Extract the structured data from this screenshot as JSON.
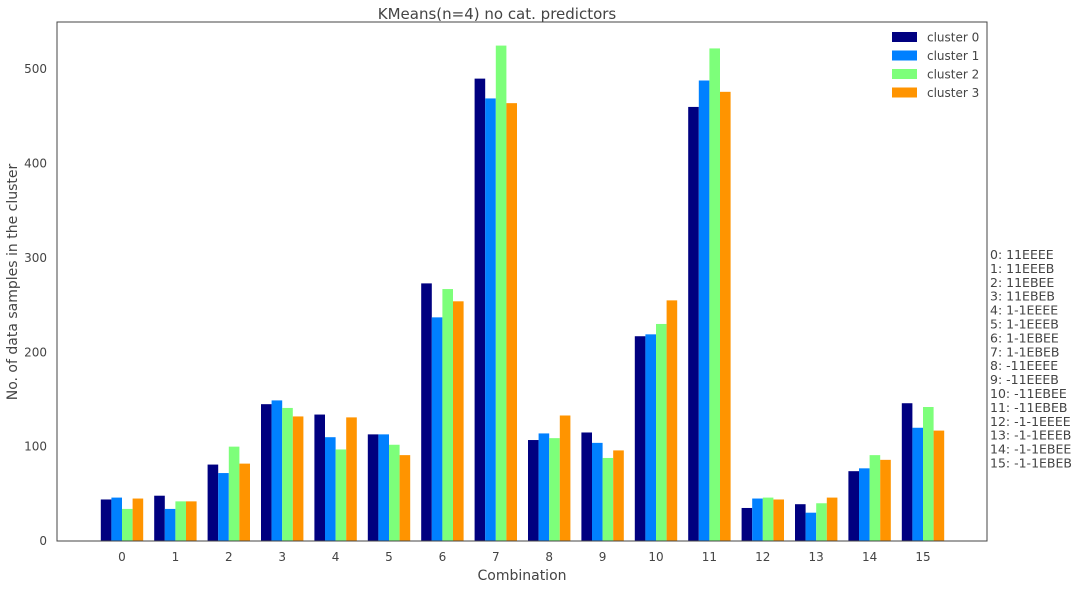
{
  "chart_data": {
    "type": "bar",
    "title": "KMeans(n=4) no cat. predictors",
    "xlabel": "Combination",
    "ylabel": "No. of data samples in the cluster",
    "ylim": [
      0,
      550
    ],
    "yticks": [
      0,
      100,
      200,
      300,
      400,
      500
    ],
    "categories": [
      "0",
      "1",
      "2",
      "3",
      "4",
      "5",
      "6",
      "7",
      "8",
      "9",
      "10",
      "11",
      "12",
      "13",
      "14",
      "15"
    ],
    "series": [
      {
        "name": "cluster 0",
        "color": "#000080",
        "values": [
          44,
          48,
          81,
          145,
          134,
          113,
          273,
          490,
          107,
          115,
          217,
          460,
          35,
          39,
          74,
          146
        ]
      },
      {
        "name": "cluster 1",
        "color": "#0080ff",
        "values": [
          46,
          34,
          72,
          149,
          110,
          113,
          237,
          469,
          114,
          104,
          219,
          488,
          45,
          30,
          77,
          120
        ]
      },
      {
        "name": "cluster 2",
        "color": "#7dff7a",
        "values": [
          34,
          42,
          100,
          141,
          97,
          102,
          267,
          525,
          109,
          88,
          230,
          522,
          46,
          40,
          91,
          142
        ]
      },
      {
        "name": "cluster 3",
        "color": "#ff9400",
        "values": [
          45,
          42,
          82,
          132,
          131,
          91,
          254,
          464,
          133,
          96,
          255,
          476,
          44,
          46,
          86,
          117
        ]
      }
    ],
    "grid": false,
    "legend_position": "top-right",
    "side_legend": [
      "0: 11EEEE",
      "1: 11EEEB",
      "2: 11EBEE",
      "3: 11EBEB",
      "4: 1-1EEEE",
      "5: 1-1EEEB",
      "6: 1-1EBEE",
      "7: 1-1EBEB",
      "8: -11EEEE",
      "9: -11EEEB",
      "10: -11EBEE",
      "11: -11EBEB",
      "12: -1-1EEEE",
      "13: -1-1EEEB",
      "14: -1-1EBEE",
      "15: -1-1EBEB"
    ]
  }
}
